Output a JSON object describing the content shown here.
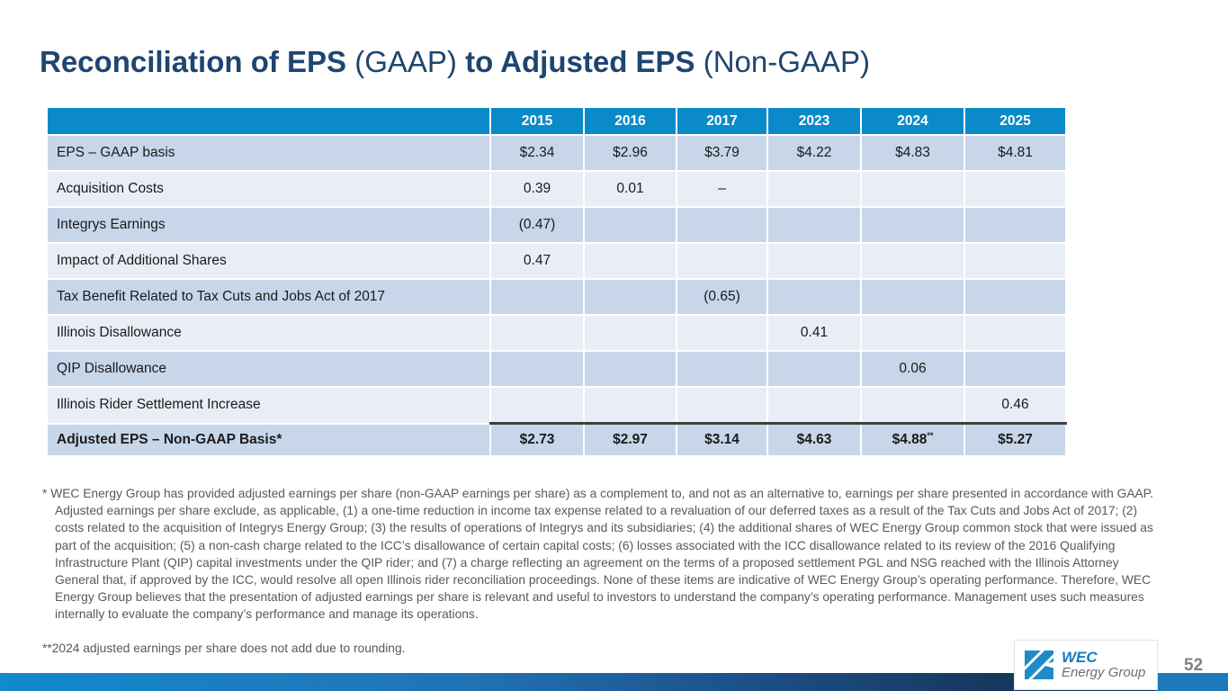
{
  "title": {
    "bold1": "Reconciliation of EPS",
    "normal1": "(GAAP)",
    "bold2": "to Adjusted EPS",
    "normal2": "(Non-GAAP)"
  },
  "table": {
    "years": [
      "2015",
      "2016",
      "2017",
      "2023",
      "2024",
      "2025"
    ],
    "rows": [
      {
        "label": "EPS – GAAP basis",
        "values": [
          "$2.34",
          "$2.96",
          "$3.79",
          "$4.22",
          "$4.83",
          "$4.81"
        ],
        "shade": "dark"
      },
      {
        "label": "Acquisition Costs",
        "values": [
          "0.39",
          "0.01",
          "–",
          "",
          "",
          ""
        ],
        "shade": "light"
      },
      {
        "label": "Integrys Earnings",
        "values": [
          "(0.47)",
          "",
          "",
          "",
          "",
          ""
        ],
        "shade": "dark"
      },
      {
        "label": "Impact of Additional Shares",
        "values": [
          "0.47",
          "",
          "",
          "",
          "",
          ""
        ],
        "shade": "light"
      },
      {
        "label": "Tax Benefit Related to Tax Cuts and Jobs Act of 2017",
        "values": [
          "",
          "",
          "(0.65)",
          "",
          "",
          ""
        ],
        "shade": "dark"
      },
      {
        "label": "Illinois Disallowance",
        "values": [
          "",
          "",
          "",
          "0.41",
          "",
          ""
        ],
        "shade": "light"
      },
      {
        "label": "QIP Disallowance",
        "values": [
          "",
          "",
          "",
          "",
          "0.06",
          ""
        ],
        "shade": "dark"
      },
      {
        "label": "Illinois Rider Settlement Increase",
        "values": [
          "",
          "",
          "",
          "",
          "",
          "0.46"
        ],
        "shade": "light"
      }
    ],
    "total_row": {
      "label": "Adjusted EPS – Non-GAAP Basis*",
      "values": [
        "$2.73",
        "$2.97",
        "$3.14",
        "$4.63",
        "$4.88",
        "$5.27"
      ],
      "sups": [
        "",
        "",
        "",
        "",
        "**",
        ""
      ]
    }
  },
  "footnotes": {
    "note1": "* WEC Energy Group has provided adjusted earnings per share (non-GAAP earnings per share) as a complement to, and not as an alternative to, earnings per share presented in accordance with GAAP. Adjusted earnings per share exclude, as applicable, (1) a one-time reduction in income tax expense related to a revaluation of our deferred taxes as a result of the Tax Cuts and Jobs Act of 2017; (2) costs related to the acquisition of Integrys Energy Group; (3) the results of operations of Integrys and its subsidiaries; (4) the additional shares of WEC Energy Group common stock that were issued as part of the acquisition; (5) a non-cash charge related to the ICC’s disallowance of certain capital costs; (6) losses associated with the ICC disallowance related to its review of the 2016 Qualifying Infrastructure Plant (QIP) capital investments under the QIP rider; and (7) a charge reflecting an agreement on the terms of a proposed settlement PGL and NSG reached with the Illinois Attorney General that, if approved by the ICC, would resolve all open Illinois rider reconciliation proceedings. None of these items are indicative of WEC Energy Group’s operating performance. Therefore, WEC Energy Group believes that the presentation of adjusted earnings per share is relevant and useful to investors to understand the company’s operating performance. Management uses such measures internally to evaluate the company’s performance and manage its operations.",
    "note2": "**2024 adjusted earnings per share does not add due to rounding."
  },
  "footer": {
    "page_number": "52",
    "logo_line1": "WEC",
    "logo_line2": "Energy Group"
  },
  "colors": {
    "title_navy": "#1F4571",
    "header_blue": "#0A8AC9",
    "row_dark": "#C8D6EA",
    "row_light": "#E9EEF6",
    "footnote_gray": "#595959",
    "total_border": "#3F3F3F",
    "bar_left_blue": "#1389CE",
    "bar_dark_navy": "#16395F",
    "bar_right_blue": "#1D79BA",
    "logo_blue": "#1B7ABF",
    "logo_gray": "#6D6E71"
  }
}
